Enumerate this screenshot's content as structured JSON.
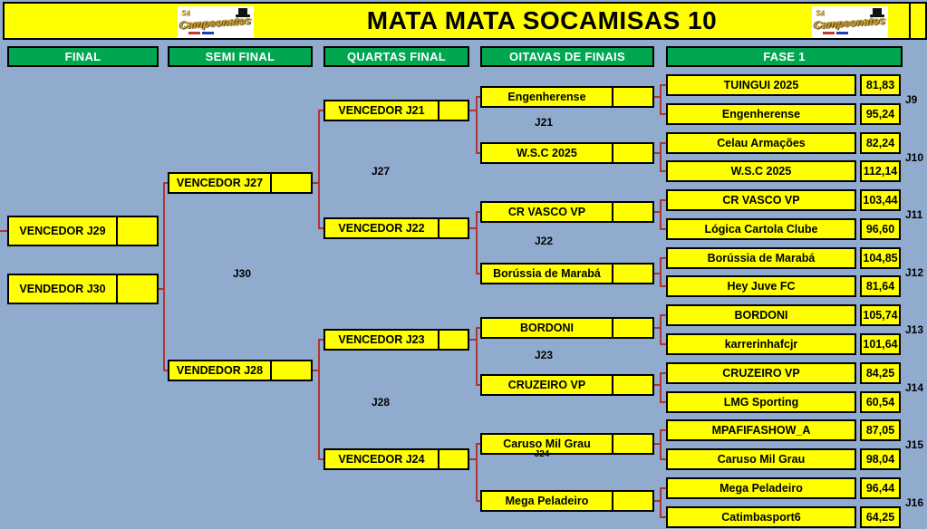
{
  "title": "MATA MATA SOCAMISAS 10",
  "logo": {
    "small_text": "Sá",
    "main_text": "Campeonatos",
    "icon": "top-hat"
  },
  "colors": {
    "background": "#90ABCE",
    "cell_yellow": "#FFFF00",
    "header_green": "#00A650",
    "header_text": "#FFFFFF",
    "connector_red": "#B13434",
    "border": "#000000"
  },
  "columns": [
    {
      "id": "final",
      "label": "FINAL"
    },
    {
      "id": "semi",
      "label": "SEMI FINAL"
    },
    {
      "id": "quartas",
      "label": "QUARTAS FINAL"
    },
    {
      "id": "oitavas",
      "label": "OITAVAS DE FINAIS"
    },
    {
      "id": "fase1",
      "label": "FASE 1"
    }
  ],
  "fase1": {
    "teams": [
      {
        "name": "TUINGUI 2025",
        "score": "81,83"
      },
      {
        "name": "Engenherense",
        "score": "95,24"
      },
      {
        "name": "Celau Armações",
        "score": "82,24"
      },
      {
        "name": "W.S.C 2025",
        "score": "112,14"
      },
      {
        "name": "CR VASCO VP",
        "score": "103,44"
      },
      {
        "name": "Lógica Cartola Clube",
        "score": "96,60"
      },
      {
        "name": "Borússia de Marabá",
        "score": "104,85"
      },
      {
        "name": "Hey Juve FC",
        "score": "81,64"
      },
      {
        "name": "BORDONI",
        "score": "105,74"
      },
      {
        "name": "karrerinhafcjr",
        "score": "101,64"
      },
      {
        "name": "CRUZEIRO VP",
        "score": "84,25"
      },
      {
        "name": "LMG Sporting",
        "score": "60,54"
      },
      {
        "name": "MPAFIFASHOW_A",
        "score": "87,05"
      },
      {
        "name": "Caruso Mil Grau",
        "score": "98,04"
      },
      {
        "name": "Mega Peladeiro",
        "score": "96,44"
      },
      {
        "name": "Catimbasport6",
        "score": "64,25"
      }
    ],
    "match_labels": [
      "J9",
      "J10",
      "J11",
      "J12",
      "J13",
      "J14",
      "J15",
      "J16"
    ]
  },
  "oitavas": {
    "teams": [
      {
        "name": "Engenherense"
      },
      {
        "name": "W.S.C 2025"
      },
      {
        "name": "CR VASCO VP"
      },
      {
        "name": "Borússia de Marabá"
      },
      {
        "name": "BORDONI"
      },
      {
        "name": "CRUZEIRO VP"
      },
      {
        "name": "Caruso Mil Grau"
      },
      {
        "name": "Mega Peladeiro"
      }
    ],
    "match_labels": [
      "J21",
      "J22",
      "J23",
      "J24"
    ]
  },
  "quartas": {
    "teams": [
      {
        "name": "VENCEDOR J21"
      },
      {
        "name": "VENCEDOR J22"
      },
      {
        "name": "VENCEDOR J23"
      },
      {
        "name": "VENCEDOR J24"
      }
    ],
    "match_labels": [
      "J27",
      "J28"
    ]
  },
  "semi": {
    "teams": [
      {
        "name": "VENCEDOR J27"
      },
      {
        "name": "VENDEDOR J28"
      }
    ],
    "match_labels": [
      "J30"
    ]
  },
  "final": {
    "teams": [
      {
        "name": "VENCEDOR J29"
      },
      {
        "name": "VENDEDOR J30"
      }
    ]
  }
}
